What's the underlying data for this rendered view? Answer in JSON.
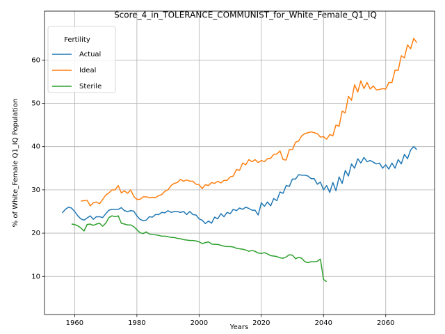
{
  "chart_data": {
    "type": "line",
    "title": "Score_4_in_TOLERANCE_COMMUNIST_for_White_Female_Q1_IQ",
    "xlabel": "Years",
    "ylabel": "% of White_Female Q1_IQ Population",
    "legend_title": "Fertility",
    "legend": "upper left",
    "grid": true,
    "xlim": [
      1950.3,
      2075.7
    ],
    "ylim": [
      1.2,
      71.3
    ],
    "xticks": [
      1960,
      1980,
      2000,
      2020,
      2040,
      2060
    ],
    "yticks": [
      10,
      20,
      30,
      40,
      50,
      60
    ],
    "x": [
      1956,
      1957,
      1958,
      1959,
      1960,
      1961,
      1962,
      1963,
      1964,
      1965,
      1966,
      1967,
      1968,
      1969,
      1970,
      1971,
      1972,
      1973,
      1974,
      1975,
      1976,
      1977,
      1978,
      1979,
      1980,
      1981,
      1982,
      1983,
      1984,
      1985,
      1986,
      1987,
      1988,
      1989,
      1990,
      1991,
      1992,
      1993,
      1994,
      1995,
      1996,
      1997,
      1998,
      1999,
      2000,
      2001,
      2002,
      2003,
      2004,
      2005,
      2006,
      2007,
      2008,
      2009,
      2010,
      2011,
      2012,
      2013,
      2014,
      2015,
      2016,
      2017,
      2018,
      2019,
      2020,
      2021,
      2022,
      2023,
      2024,
      2025,
      2026,
      2027,
      2028,
      2029,
      2030,
      2031,
      2032,
      2033,
      2034,
      2035,
      2036,
      2037,
      2038,
      2039,
      2040,
      2041,
      2042,
      2043,
      2044,
      2045,
      2046,
      2047,
      2048,
      2049,
      2050,
      2051,
      2052,
      2053,
      2054,
      2055,
      2056,
      2057,
      2058,
      2059,
      2060,
      2061,
      2062,
      2063,
      2064,
      2065,
      2066,
      2067,
      2068,
      2069,
      2070
    ],
    "series": [
      {
        "name": "Actual",
        "color": "#1f77b4",
        "values": [
          24.7,
          25.5,
          26,
          25.8,
          25,
          24,
          23.3,
          23,
          23.5,
          24,
          23.2,
          23.8,
          23.8,
          23.6,
          24.5,
          25.3,
          25.5,
          25.5,
          25.5,
          25.9,
          25.2,
          25,
          25.2,
          25.1,
          24,
          23.2,
          22.9,
          23,
          23.8,
          23.7,
          24.3,
          24.3,
          24.8,
          24.7,
          25.2,
          24.8,
          25,
          25,
          24.8,
          25,
          24.3,
          25,
          24.3,
          24.2,
          23.3,
          23,
          22.2,
          22.8,
          22.3,
          23.7,
          23.3,
          24.5,
          23.8,
          24.8,
          24.5,
          25.5,
          25.2,
          25.8,
          25.5,
          26,
          25.7,
          25.3,
          25.3,
          24.2,
          27,
          26.2,
          27.2,
          26.3,
          28,
          27.5,
          29.5,
          29.2,
          31,
          30.8,
          32.5,
          32.5,
          33.5,
          33.4,
          33.4,
          33.2,
          32.6,
          32.6,
          31.3,
          31.8,
          30,
          31,
          29.4,
          31.7,
          29.8,
          33,
          31.5,
          34.5,
          33.2,
          36,
          35,
          37.2,
          36.2,
          37.5,
          36.5,
          36.8,
          36.4,
          36,
          36.2,
          35,
          35.8,
          34.8,
          36.2,
          35,
          37,
          36,
          38.2,
          37.2,
          39.2,
          40,
          39.3
        ]
      },
      {
        "name": "Ideal",
        "color": "#ff7f0e",
        "values": [
          null,
          null,
          null,
          null,
          null,
          null,
          27.4,
          27.5,
          27.6,
          26.3,
          27,
          27.2,
          26.8,
          27.8,
          28.8,
          29.3,
          30,
          30,
          31,
          29.3,
          29.8,
          29.2,
          30,
          28.5,
          27.8,
          27.8,
          28.4,
          28.4,
          28.2,
          28.3,
          28.2,
          28.7,
          28.9,
          29.7,
          30,
          31,
          31.5,
          31.7,
          32.4,
          32,
          32.3,
          32,
          32,
          31.3,
          31.2,
          30.3,
          31.2,
          31,
          31.7,
          31.5,
          32,
          31.6,
          32.2,
          32.2,
          33,
          33.2,
          34.7,
          34.5,
          36.2,
          35.8,
          37,
          36.5,
          37,
          36.3,
          36.8,
          36.5,
          37.2,
          37.3,
          38.2,
          38.3,
          39,
          37,
          36.9,
          39.3,
          39.3,
          41,
          41.3,
          42.5,
          43,
          43.2,
          43.4,
          43.2,
          43,
          42.2,
          42.3,
          41.7,
          42.8,
          42.5,
          45,
          44.7,
          48.2,
          47.8,
          51.6,
          50.7,
          54.3,
          52.6,
          55.2,
          53.4,
          54.8,
          53.3,
          54,
          53.1,
          53.2,
          53.4,
          53.3,
          54.8,
          54.8,
          57.7,
          57.6,
          61,
          60.5,
          63.5,
          62.6,
          65,
          64
        ]
      },
      {
        "name": "Sterile",
        "color": "#2ca02c",
        "values": [
          null,
          null,
          null,
          22.1,
          22,
          21.7,
          21.2,
          20.5,
          22,
          22.1,
          21.8,
          22.1,
          22.3,
          21.6,
          22.3,
          23.6,
          24,
          23.8,
          24,
          22.3,
          22.1,
          21.9,
          21.9,
          21.5,
          20.8,
          20.1,
          19.9,
          20.3,
          19.8,
          19.7,
          19.6,
          19.5,
          19.3,
          19.3,
          19.2,
          19,
          19,
          18.8,
          18.7,
          18.5,
          18.4,
          18.3,
          18.3,
          18.2,
          18,
          17.6,
          17.8,
          18,
          17.5,
          17.4,
          17.4,
          17.2,
          17,
          16.9,
          16.9,
          16.8,
          16.5,
          16.4,
          16.3,
          16.1,
          15.8,
          16,
          15.8,
          15.4,
          15.3,
          15.5,
          15.2,
          14.8,
          14.7,
          14.6,
          14.3,
          14.2,
          14.5,
          15,
          14.9,
          14.1,
          14.4,
          14.2,
          13.4,
          13.2,
          13.4,
          13.4,
          13.5,
          14,
          9.3,
          8.8,
          null,
          null,
          null,
          null,
          null,
          null,
          null,
          null,
          null,
          null,
          null,
          null,
          null,
          null,
          null,
          null,
          null,
          null,
          null,
          null,
          null,
          null,
          null,
          null,
          null,
          null,
          null,
          null,
          null
        ]
      }
    ]
  }
}
